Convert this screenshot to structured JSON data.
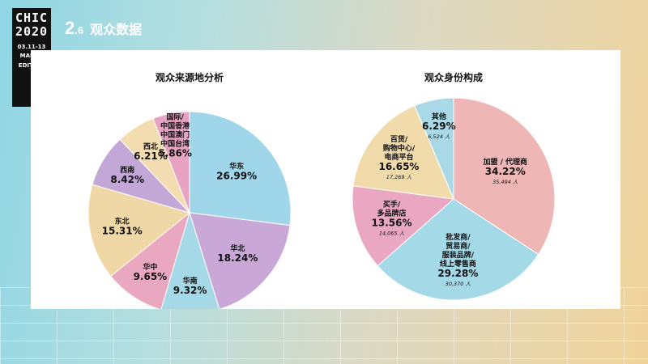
{
  "logo": {
    "line1": "CHIC",
    "line2": "2020",
    "dates": "03.11-13",
    "edition_1": "MARCH",
    "edition_2": "EDITION"
  },
  "header": {
    "number": "2",
    "subnumber": ".6",
    "title": "观众数据"
  },
  "chart_data": [
    {
      "type": "pie",
      "title": "观众来源地分析",
      "slices": [
        {
          "name": "华东",
          "value": 26.99,
          "label_lines": [
            "华东"
          ],
          "pct": "26.99%",
          "color": "#9fd6ea"
        },
        {
          "name": "华北",
          "value": 18.24,
          "label_lines": [
            "华北"
          ],
          "pct": "18.24%",
          "color": "#c9a8d8"
        },
        {
          "name": "华南",
          "value": 9.32,
          "label_lines": [
            "华南"
          ],
          "pct": "9.32%",
          "color": "#a6d9e8"
        },
        {
          "name": "华中",
          "value": 9.65,
          "label_lines": [
            "华中"
          ],
          "pct": "9.65%",
          "color": "#e9a8bf"
        },
        {
          "name": "东北",
          "value": 15.31,
          "label_lines": [
            "东北"
          ],
          "pct": "15.31%",
          "color": "#f0d7a6"
        },
        {
          "name": "西南",
          "value": 8.42,
          "label_lines": [
            "西南"
          ],
          "pct": "8.42%",
          "color": "#c3a7d6"
        },
        {
          "name": "西北",
          "value": 6.21,
          "label_lines": [
            "西北"
          ],
          "pct": "6.21%",
          "color": "#f3dcb0"
        },
        {
          "name": "国际/中国香港中国澳门中国台湾",
          "value": 5.86,
          "label_lines": [
            "国际/",
            "中国香港",
            "中国澳门",
            "中国台湾"
          ],
          "pct": "5.86%",
          "color": "#e8a3c3"
        }
      ]
    },
    {
      "type": "pie",
      "title": "观众身份构成",
      "slices": [
        {
          "name": "加盟 / 代理商",
          "value": 34.22,
          "label_lines": [
            "加盟 / 代理商"
          ],
          "pct": "34.22%",
          "count": "35,494 人",
          "color": "#efb6b6"
        },
        {
          "name": "批发商/贸易商/服装品牌/线上零售商",
          "value": 29.28,
          "label_lines": [
            "批发商/",
            "贸易商/",
            "服装品牌/",
            "线上零售商"
          ],
          "pct": "29.28%",
          "count": "30,370 人",
          "color": "#a4d9e8"
        },
        {
          "name": "买手/多品牌店",
          "value": 13.56,
          "label_lines": [
            "买手/",
            "多品牌店"
          ],
          "pct": "13.56%",
          "count": "14,065 人",
          "color": "#eaa7c2"
        },
        {
          "name": "百货/购物中心/电商平台",
          "value": 16.65,
          "label_lines": [
            "百货/",
            "购物中心/",
            "电商平台"
          ],
          "pct": "16.65%",
          "count": "17,269 人",
          "color": "#f1dbab"
        },
        {
          "name": "其他",
          "value": 6.29,
          "label_lines": [
            "其他"
          ],
          "pct": "6.29%",
          "count": "6,524 人",
          "color": "#a9d8e6"
        }
      ]
    }
  ]
}
